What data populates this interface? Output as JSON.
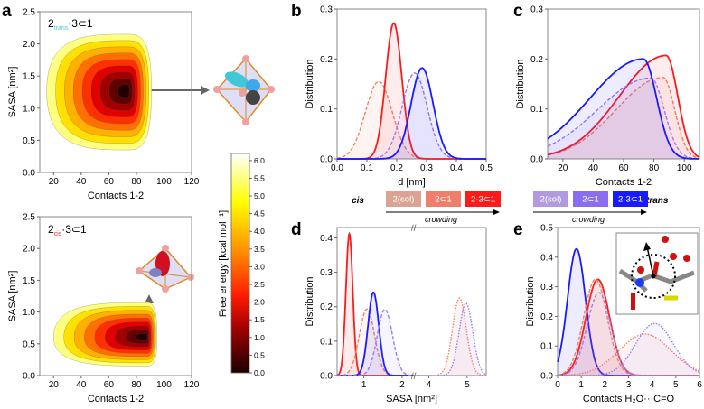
{
  "panels": {
    "a": "a",
    "b": "b",
    "c": "c",
    "d": "d",
    "e": "e"
  },
  "colors": {
    "red": "#ff1a1a",
    "blue": "#1a1aff",
    "salmon": "#f0806a",
    "lightsalmon": "#e0a090",
    "violet": "#9b7cf0",
    "lilac": "#b8a0e8"
  },
  "chart_data": [
    {
      "id": "a-top",
      "type": "heatmap",
      "title_main": "2",
      "title_sub": "trans",
      "title_rest": "·3⊂1",
      "xlabel": "Contacts 1-2",
      "ylabel": "SASA [nm²]",
      "xlim": [
        10,
        120
      ],
      "ylim": [
        0,
        2.5
      ],
      "xticks": [
        "20",
        "40",
        "60",
        "80",
        "100",
        "120"
      ],
      "yticks": [
        "0.0",
        "0.5",
        "1.0",
        "1.5",
        "2.0",
        "2.5"
      ],
      "minimum": {
        "x": 73,
        "y": 1.27
      },
      "extent": {
        "x": [
          15,
          91
        ],
        "y": [
          0.35,
          2.15
        ]
      }
    },
    {
      "id": "a-bottom",
      "type": "heatmap",
      "title_main": "2",
      "title_sub": "cis",
      "title_rest": "·3⊂1",
      "xlabel": "Contacts 1-2",
      "ylabel": "SASA [nm²]",
      "xlim": [
        10,
        120
      ],
      "ylim": [
        0,
        2.5
      ],
      "xticks": [
        "20",
        "40",
        "60",
        "80",
        "100",
        "120"
      ],
      "yticks": [
        "0.0",
        "0.5",
        "1.0",
        "1.5",
        "2.0",
        "2.5"
      ],
      "minimum": {
        "x": 87,
        "y": 0.6
      },
      "extent": {
        "x": [
          20,
          95
        ],
        "y": [
          0.15,
          1.15
        ]
      }
    },
    {
      "id": "colorbar",
      "type": "heatmap",
      "label": "Free energy [kcal mol⁻¹]",
      "range": [
        0,
        6.2
      ],
      "ticks": [
        "0.0",
        "0.5",
        "1.0",
        "1.5",
        "2.0",
        "2.5",
        "3.0",
        "3.5",
        "4.0",
        "4.5",
        "5.0",
        "5.5",
        "6.0"
      ]
    },
    {
      "id": "b",
      "type": "line",
      "xlabel": "d [nm]",
      "ylabel": "Distribution",
      "xlim": [
        0,
        0.5
      ],
      "ylim": [
        0,
        0.3
      ],
      "xticks": [
        "0.0",
        "0.1",
        "0.2",
        "0.3",
        "0.4",
        "0.5"
      ],
      "yticks": [
        "0.0",
        "0.1",
        "0.2",
        "0.3"
      ],
      "series": [
        {
          "name": "cis 2(sol)",
          "style": "dashed",
          "color": "#f0806a",
          "peak": 0.14,
          "height": 0.155,
          "width": 0.045,
          "skew": 0
        },
        {
          "name": "cis 2·3⊂1",
          "style": "solid",
          "color": "#ff1a1a",
          "peak": 0.19,
          "height": 0.272,
          "width": 0.027,
          "skew": 0
        },
        {
          "name": "trans 2(sol)",
          "style": "dashed",
          "color": "#9b7cf0",
          "peak": 0.26,
          "height": 0.172,
          "width": 0.042,
          "skew": 0
        },
        {
          "name": "trans 2·3⊂1",
          "style": "solid",
          "color": "#1a1aff",
          "peak": 0.285,
          "height": 0.182,
          "width": 0.037,
          "skew": 0
        }
      ]
    },
    {
      "id": "c",
      "type": "line",
      "xlabel": "Contacts 1-2",
      "ylabel": "Distribution",
      "xlim": [
        10,
        110
      ],
      "ylim": [
        0,
        0.3
      ],
      "xticks": [
        "20",
        "40",
        "60",
        "80",
        "100"
      ],
      "yticks": [
        "0.0",
        "0.1",
        "0.2",
        "0.3"
      ],
      "series": [
        {
          "name": "cis 2(sol)",
          "style": "dashed",
          "color": "#f0806a",
          "peak": 86,
          "height": 0.163,
          "width": 14,
          "skew": 1
        },
        {
          "name": "cis 2·3⊂1",
          "style": "solid",
          "color": "#ff1a1a",
          "peak": 88,
          "height": 0.207,
          "width": 14,
          "skew": 1
        },
        {
          "name": "trans 2(sol)",
          "style": "dashed",
          "color": "#9b7cf0",
          "peak": 78,
          "height": 0.162,
          "width": 16,
          "skew": 1
        },
        {
          "name": "trans 2·3⊂1",
          "style": "solid",
          "color": "#1a1aff",
          "peak": 73,
          "height": 0.2,
          "width": 16,
          "skew": 1
        }
      ]
    },
    {
      "id": "d",
      "type": "line",
      "xlabel": "SASA [nm²]",
      "ylabel": "Distribution",
      "xlim": [
        0.3,
        5.5
      ],
      "ylim": [
        0,
        0.43
      ],
      "axis_break": [
        2.3,
        3.6
      ],
      "xticks": [
        "1",
        "2",
        "4",
        "5"
      ],
      "yticks": [
        "0.0",
        "0.1",
        "0.2",
        "0.3",
        "0.4"
      ],
      "series": [
        {
          "name": "cis 2·3⊂1",
          "style": "solid",
          "color": "#ff1a1a",
          "peak": 0.62,
          "height": 0.412,
          "width": 0.09,
          "skew": 0
        },
        {
          "name": "cis 2⊂1",
          "style": "dashed",
          "color": "#f0806a",
          "peak": 1.08,
          "height": 0.193,
          "width": 0.2,
          "skew": 0
        },
        {
          "name": "trans 2·3⊂1",
          "style": "solid",
          "color": "#1a1aff",
          "peak": 1.25,
          "height": 0.242,
          "width": 0.14,
          "skew": 0
        },
        {
          "name": "trans 2⊂1",
          "style": "dashed",
          "color": "#9b7cf0",
          "peak": 1.55,
          "height": 0.192,
          "width": 0.2,
          "skew": 0
        },
        {
          "name": "cis 2(sol)",
          "style": "dotted",
          "color": "#f0806a",
          "peak": 4.8,
          "height": 0.225,
          "width": 0.18,
          "skew": 0
        },
        {
          "name": "trans 2(sol)",
          "style": "dotted",
          "color": "#9b7cf0",
          "peak": 4.97,
          "height": 0.21,
          "width": 0.18,
          "skew": 0
        }
      ]
    },
    {
      "id": "e",
      "type": "line",
      "xlabel": "Contacts H₂O···C=O",
      "ylabel": "Distribution",
      "xlim": [
        0,
        6
      ],
      "ylim": [
        0,
        0.5
      ],
      "xticks": [
        "0",
        "1",
        "2",
        "3",
        "4",
        "5",
        "6"
      ],
      "yticks": [
        "0.0",
        "0.1",
        "0.2",
        "0.3",
        "0.4",
        "0.5"
      ],
      "series": [
        {
          "name": "trans 2·3⊂1",
          "style": "solid",
          "color": "#1a1aff",
          "peak": 0.8,
          "height": 0.428,
          "width": 0.38,
          "skew": 0
        },
        {
          "name": "cis 2·3⊂1",
          "style": "solid",
          "color": "#ff1a1a",
          "peak": 1.7,
          "height": 0.325,
          "width": 0.5,
          "skew": 0
        },
        {
          "name": "cis 2⊂1",
          "style": "dashed",
          "color": "#f0806a",
          "peak": 1.6,
          "height": 0.325,
          "width": 0.5,
          "skew": 0
        },
        {
          "name": "trans 2⊂1",
          "style": "dashed",
          "color": "#9b7cf0",
          "peak": 1.75,
          "height": 0.28,
          "width": 0.5,
          "skew": 0
        },
        {
          "name": "cis 2(sol)",
          "style": "dotted",
          "color": "#f0806a",
          "peak": 3.7,
          "height": 0.14,
          "width": 1.1,
          "skew": 0
        },
        {
          "name": "trans 2(sol)",
          "style": "dotted",
          "color": "#9b7cf0",
          "peak": 4.1,
          "height": 0.176,
          "width": 0.8,
          "skew": 0
        }
      ]
    }
  ],
  "legend": {
    "cis_label": "cis",
    "trans_label": "trans",
    "crowding": "crowding",
    "cis": [
      {
        "label": "2(sol)",
        "color": "#dba393"
      },
      {
        "label": "2⊂1",
        "color": "#ef7f6a"
      },
      {
        "label": "2·3⊂1",
        "color": "#ff1a1a"
      }
    ],
    "trans": [
      {
        "label": "2(sol)",
        "color": "#b29ae0"
      },
      {
        "label": "2⊂1",
        "color": "#8b6ef0"
      },
      {
        "label": "2·3⊂1",
        "color": "#1a1aff"
      }
    ]
  }
}
